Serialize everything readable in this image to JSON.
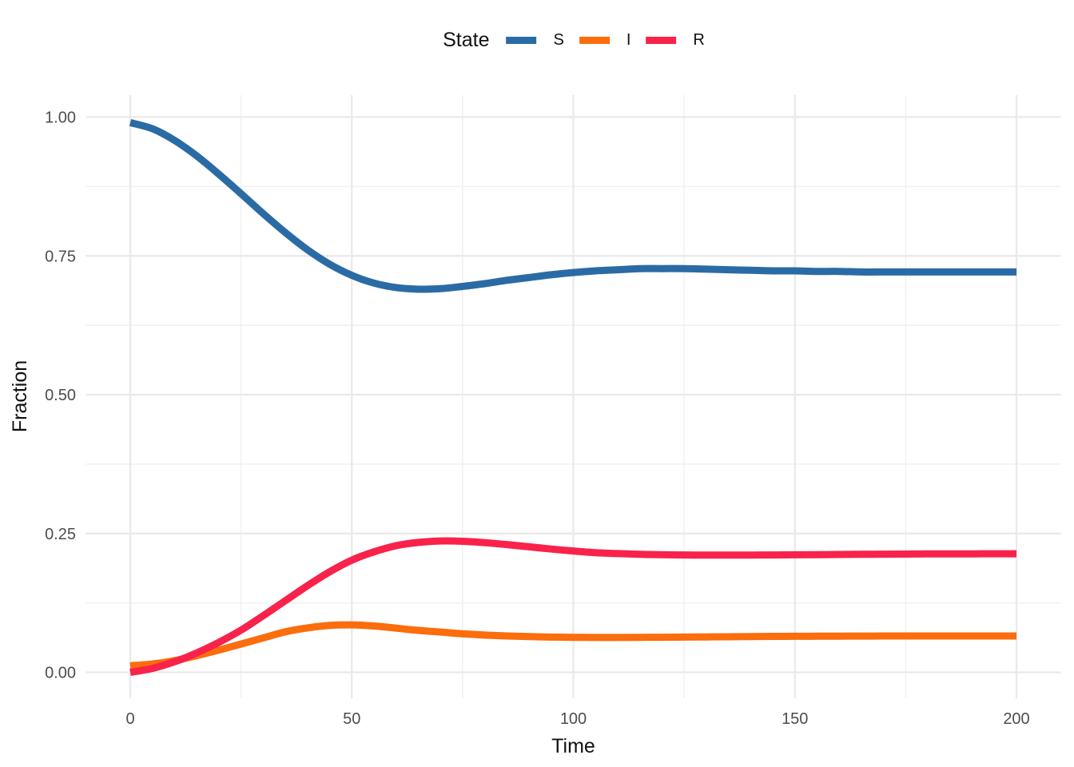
{
  "chart_data": {
    "type": "line",
    "title": "",
    "xlabel": "Time",
    "ylabel": "Fraction",
    "legend": {
      "title": "State",
      "position": "top"
    },
    "grid": true,
    "xlim": [
      -10,
      210
    ],
    "ylim": [
      -0.0495,
      1.0395
    ],
    "x_ticks": {
      "major": [
        0,
        50,
        100,
        150,
        200
      ],
      "minor": [
        25,
        75,
        125,
        175
      ]
    },
    "y_ticks": {
      "major": [
        0,
        0.25,
        0.5,
        0.75,
        1
      ],
      "minor": [
        0.125,
        0.375,
        0.625,
        0.875
      ]
    },
    "x_tick_labels": [
      "0",
      "50",
      "100",
      "150",
      "200"
    ],
    "y_tick_labels": [
      "0.00",
      "0.25",
      "0.50",
      "0.75",
      "1.00"
    ],
    "x": [
      0,
      5,
      10,
      15,
      20,
      25,
      30,
      35,
      40,
      45,
      50,
      55,
      60,
      65,
      70,
      75,
      80,
      85,
      90,
      95,
      100,
      105,
      110,
      115,
      120,
      125,
      130,
      135,
      140,
      145,
      150,
      155,
      160,
      165,
      170,
      175,
      180,
      185,
      190,
      195,
      200
    ],
    "series": [
      {
        "name": "S",
        "color": "#2B6BA5",
        "values": [
          0.99,
          0.979,
          0.958,
          0.93,
          0.897,
          0.862,
          0.826,
          0.792,
          0.761,
          0.735,
          0.715,
          0.701,
          0.693,
          0.69,
          0.691,
          0.695,
          0.7,
          0.706,
          0.711,
          0.716,
          0.72,
          0.723,
          0.725,
          0.727,
          0.727,
          0.727,
          0.726,
          0.725,
          0.724,
          0.723,
          0.723,
          0.722,
          0.722,
          0.721,
          0.721,
          0.721,
          0.721,
          0.721,
          0.721,
          0.721,
          0.721
        ]
      },
      {
        "name": "I",
        "color": "#FB6D0D",
        "values": [
          0.012,
          0.015,
          0.021,
          0.03,
          0.04,
          0.051,
          0.062,
          0.073,
          0.08,
          0.0845,
          0.0855,
          0.0835,
          0.0795,
          0.0755,
          0.0725,
          0.0695,
          0.067,
          0.0655,
          0.0643,
          0.0635,
          0.063,
          0.0628,
          0.0628,
          0.063,
          0.0632,
          0.0635,
          0.0638,
          0.0641,
          0.0644,
          0.0647,
          0.0649,
          0.0651,
          0.0652,
          0.0653,
          0.0654,
          0.0655,
          0.0655,
          0.0655,
          0.0655,
          0.0655,
          0.0655
        ]
      },
      {
        "name": "R",
        "color": "#F9224B",
        "values": [
          0.0,
          0.007,
          0.019,
          0.035,
          0.054,
          0.076,
          0.102,
          0.129,
          0.156,
          0.181,
          0.202,
          0.217,
          0.228,
          0.234,
          0.2365,
          0.236,
          0.2335,
          0.23,
          0.226,
          0.222,
          0.2185,
          0.2155,
          0.2138,
          0.2126,
          0.2118,
          0.2113,
          0.2111,
          0.2111,
          0.2112,
          0.2114,
          0.2117,
          0.212,
          0.2123,
          0.2126,
          0.2128,
          0.213,
          0.2132,
          0.2133,
          0.2134,
          0.2135,
          0.2135
        ]
      }
    ],
    "style": {
      "background": "#FFFFFF",
      "grid_major_color": "#E9E9E9",
      "grid_minor_color": "#F0F0F0",
      "tick_text_color": "#4D4D4D",
      "title_text_color": "#111111",
      "line_width": 9
    }
  }
}
